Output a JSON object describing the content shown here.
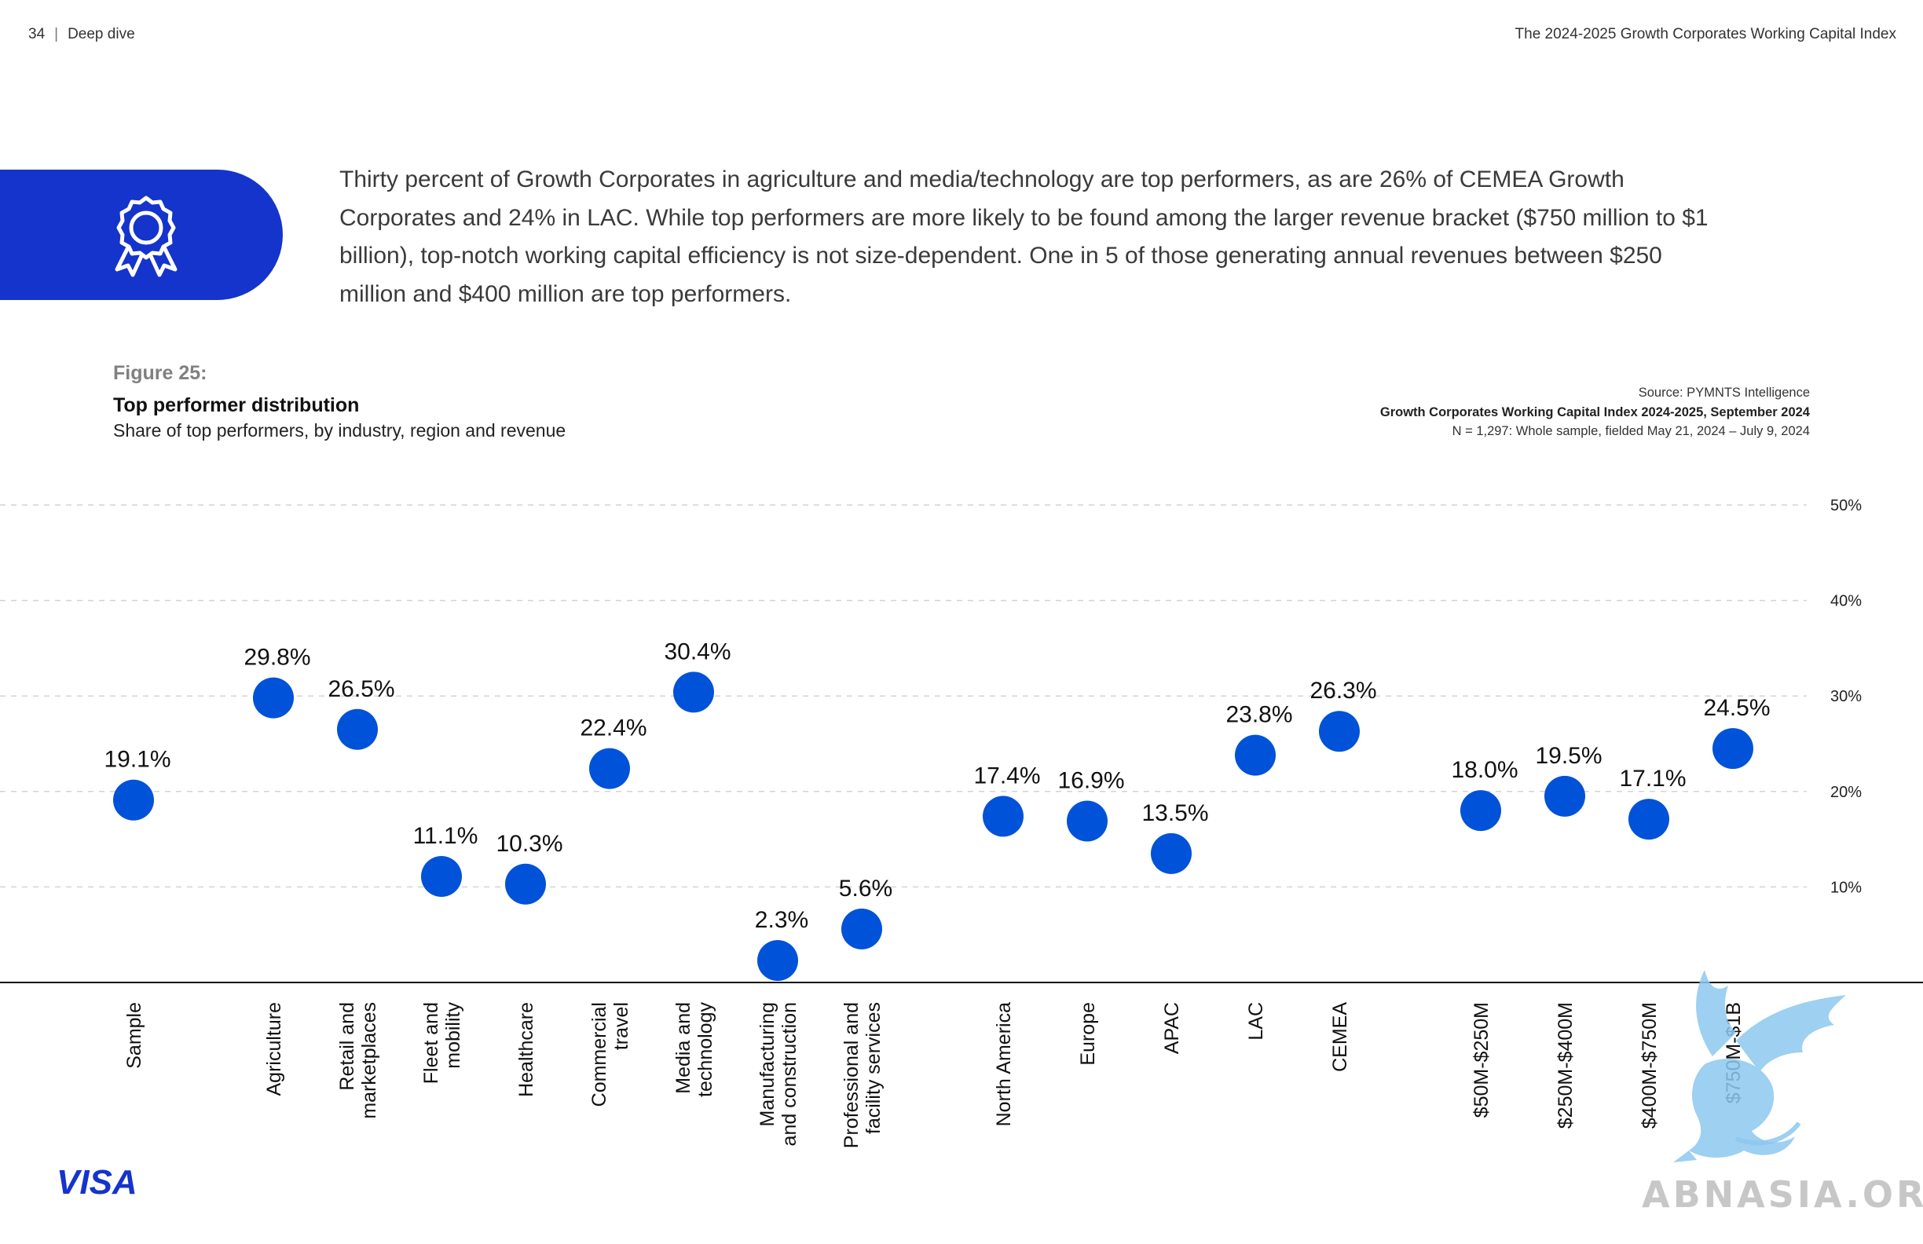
{
  "header": {
    "page_number": "34",
    "separator": "|",
    "section": "Deep dive",
    "report_title": "The 2024-2025 Growth Corporates Working Capital Index"
  },
  "intro": {
    "icon": "award-ribbon-icon",
    "text": "Thirty percent of Growth Corporates in agriculture and media/technology are top performers, as are 26% of CEMEA Growth Corporates and 24% in LAC. While top performers are more likely to be found among the larger revenue bracket ($750 million to $1 billion), top-notch working capital efficiency is not size-dependent. One in 5 of those generating annual revenues between $250 million and $400 million are top performers."
  },
  "figure": {
    "label": "Figure 25:",
    "title": "Top performer distribution",
    "subtitle": "Share of top performers, by industry, region and revenue"
  },
  "source": {
    "line1": "Source: PYMNTS Intelligence",
    "line2": "Growth Corporates Working Capital Index 2024-2025, September 2024",
    "line3": "N = 1,297: Whole sample, fielded May 21, 2024 – July 9, 2024"
  },
  "chart_data": {
    "type": "scatter",
    "title": "Top performer distribution",
    "subtitle": "Share of top performers, by industry, region and revenue",
    "ylim": [
      0,
      50
    ],
    "y_ticks": [
      "10%",
      "20%",
      "30%",
      "40%",
      "50%"
    ],
    "y_tick_values": [
      10,
      20,
      30,
      40,
      50
    ],
    "grid": true,
    "point_color": "#0052d9",
    "points": [
      {
        "category": [
          "Sample"
        ],
        "value": 19.1,
        "label": "19.1%"
      },
      {
        "category": [
          "Agriculture"
        ],
        "value": 29.8,
        "label": "29.8%"
      },
      {
        "category": [
          "Retail and",
          "marketplaces"
        ],
        "value": 26.5,
        "label": "26.5%"
      },
      {
        "category": [
          "Fleet and",
          "mobility"
        ],
        "value": 11.1,
        "label": "11.1%"
      },
      {
        "category": [
          "Healthcare"
        ],
        "value": 10.3,
        "label": "10.3%"
      },
      {
        "category": [
          "Commercial",
          "travel"
        ],
        "value": 22.4,
        "label": "22.4%"
      },
      {
        "category": [
          "Media and",
          "technology"
        ],
        "value": 30.4,
        "label": "30.4%"
      },
      {
        "category": [
          "Manufacturing",
          "and construction"
        ],
        "value": 2.3,
        "label": "2.3%"
      },
      {
        "category": [
          "Professional and",
          "facility services"
        ],
        "value": 5.6,
        "label": "5.6%"
      },
      {
        "category": [
          "North America"
        ],
        "value": 17.4,
        "label": "17.4%"
      },
      {
        "category": [
          "Europe"
        ],
        "value": 16.9,
        "label": "16.9%"
      },
      {
        "category": [
          "APAC"
        ],
        "value": 13.5,
        "label": "13.5%"
      },
      {
        "category": [
          "LAC"
        ],
        "value": 23.8,
        "label": "23.8%"
      },
      {
        "category": [
          "CEMEA"
        ],
        "value": 26.3,
        "label": "26.3%"
      },
      {
        "category": [
          "$50M-$250M"
        ],
        "value": 18.0,
        "label": "18.0%"
      },
      {
        "category": [
          "$250M-$400M"
        ],
        "value": 19.5,
        "label": "19.5%"
      },
      {
        "category": [
          "$400M-$750M"
        ],
        "value": 17.1,
        "label": "17.1%"
      },
      {
        "category": [
          "$750M-$1B"
        ],
        "value": 24.5,
        "label": "24.5%"
      }
    ]
  },
  "footer": {
    "logo_text": "VISA",
    "logo_color": "#1434cb",
    "watermark_text": "ABNASIA.ORG"
  }
}
